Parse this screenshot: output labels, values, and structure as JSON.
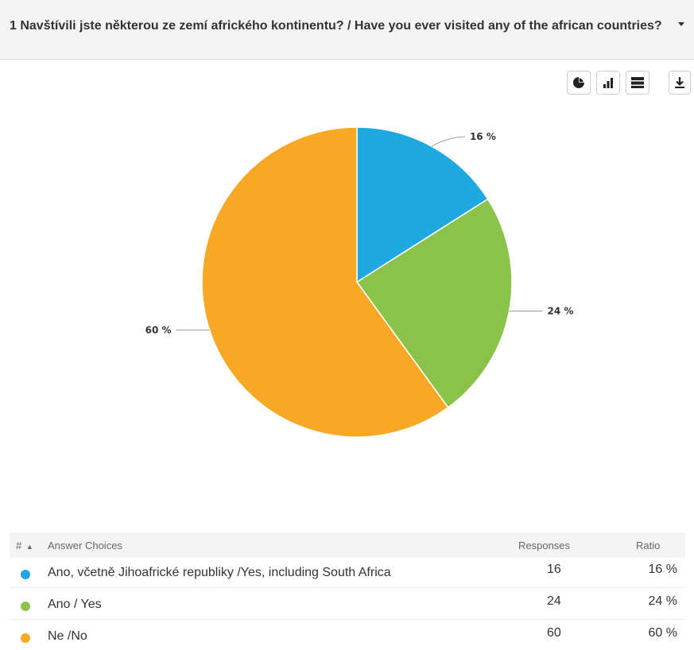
{
  "question": {
    "title": "1 Navštívili jste některou ze zemí afrického kontinentu? / Have you ever visited any of the african countries?"
  },
  "toolbar": {
    "icons": [
      "pie-chart-icon",
      "bar-chart-icon",
      "table-view-icon",
      "download-icon"
    ]
  },
  "chart_data": {
    "type": "pie",
    "slices": [
      {
        "label": "Ano, včetně Jihoafrické republiky /Yes, including South Africa",
        "value": 16,
        "display": "16 %",
        "color": "#20a8e0"
      },
      {
        "label": "Ano / Yes",
        "value": 24,
        "display": "24 %",
        "color": "#8bc34a"
      },
      {
        "label": "Ne /No",
        "value": 60,
        "display": "60 %",
        "color": "#f9a825"
      }
    ]
  },
  "table": {
    "headers": {
      "num": "#",
      "choices": "Answer Choices",
      "responses": "Responses",
      "ratio": "Ratio"
    },
    "rows": [
      {
        "label": "Ano, včetně Jihoafrické republiky /Yes, including South Africa",
        "responses": "16",
        "ratio": "16 %",
        "color": "#20a8e0"
      },
      {
        "label": "Ano / Yes",
        "responses": "24",
        "ratio": "24 %",
        "color": "#8bc34a"
      },
      {
        "label": "Ne /No",
        "responses": "60",
        "ratio": "60 %",
        "color": "#f9a825"
      }
    ]
  }
}
